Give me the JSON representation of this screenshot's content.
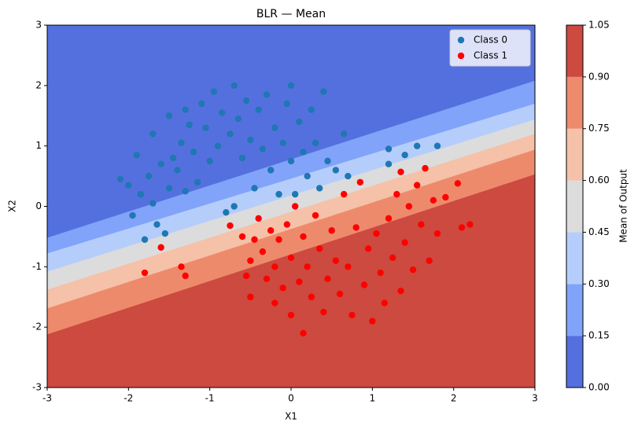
{
  "chart_data": {
    "type": "scatter",
    "title": "BLR — Mean",
    "xlabel": "X1",
    "ylabel": "X2",
    "xlim": [
      -3,
      3
    ],
    "ylim": [
      -3,
      3
    ],
    "xticks": [
      -3,
      -2,
      -1,
      0,
      1,
      2,
      3
    ],
    "yticks": [
      -3,
      -2,
      -1,
      0,
      1,
      2,
      3
    ],
    "legend": "upper right",
    "colorbar": {
      "label": "Mean of Output",
      "ticks": [
        {
          "value": 0,
          "label": "0.00"
        },
        {
          "value": 0.15,
          "label": "0.15"
        },
        {
          "value": 0.3,
          "label": "0.30"
        },
        {
          "value": 0.45,
          "label": "0.45"
        },
        {
          "value": 0.6,
          "label": "0.60"
        },
        {
          "value": 0.75,
          "label": "0.75"
        },
        {
          "value": 0.9,
          "label": "0.90"
        },
        {
          "value": 1.05,
          "label": "1.05"
        }
      ],
      "colors": [
        "#5470de",
        "#81a3f9",
        "#b5cdfa",
        "#dcdcdc",
        "#f5c1a8",
        "#ee8a6c",
        "#cc4a3f"
      ]
    },
    "contour_lines": [
      [
        -0.52,
        2.08
      ],
      [
        -0.78,
        1.7
      ],
      [
        -1.08,
        1.44
      ],
      [
        -1.38,
        1.2
      ],
      [
        -1.69,
        0.94
      ],
      [
        -2.12,
        0.53
      ]
    ],
    "series": [
      {
        "name": "Class 0",
        "color": "#1f77b4",
        "x": [
          -2.1,
          -2.0,
          -1.95,
          -1.9,
          -1.85,
          -1.8,
          -1.75,
          -1.7,
          -1.7,
          -1.65,
          -1.6,
          -1.55,
          -1.5,
          -1.5,
          -1.45,
          -1.4,
          -1.35,
          -1.3,
          -1.3,
          -1.25,
          -1.2,
          -1.15,
          -1.1,
          -1.05,
          -1.0,
          -0.95,
          -0.9,
          -0.85,
          -0.8,
          -0.75,
          -0.7,
          -0.7,
          -0.65,
          -0.6,
          -0.55,
          -0.5,
          -0.45,
          -0.4,
          -0.35,
          -0.3,
          -0.25,
          -0.2,
          -0.15,
          -0.1,
          -0.05,
          0.0,
          0.0,
          0.05,
          0.1,
          0.15,
          0.2,
          0.25,
          0.3,
          0.35,
          0.4,
          0.45,
          0.55,
          0.65,
          0.7,
          1.2,
          1.2,
          1.4,
          1.55,
          1.8
        ],
        "values": [
          0.45,
          0.35,
          -0.15,
          0.85,
          0.2,
          -0.55,
          0.5,
          1.2,
          0.05,
          -0.3,
          0.7,
          -0.45,
          1.5,
          0.3,
          0.8,
          0.6,
          1.05,
          1.6,
          0.25,
          1.35,
          0.9,
          0.4,
          1.7,
          1.3,
          0.75,
          1.9,
          1.0,
          1.55,
          -0.1,
          1.2,
          2.0,
          0.0,
          1.45,
          0.8,
          1.75,
          1.1,
          0.3,
          1.6,
          0.95,
          1.85,
          0.6,
          1.3,
          0.2,
          1.05,
          1.7,
          0.75,
          2.0,
          0.2,
          1.4,
          0.9,
          0.5,
          1.6,
          1.05,
          0.3,
          1.9,
          0.75,
          0.6,
          1.2,
          0.5,
          0.95,
          0.7,
          0.85,
          1.0,
          1.0
        ]
      },
      {
        "name": "Class 1",
        "color": "#ff0000",
        "x": [
          -1.8,
          -1.6,
          -1.35,
          -1.3,
          -0.75,
          -0.6,
          -0.55,
          -0.5,
          -0.45,
          -0.5,
          -0.4,
          -0.35,
          -0.3,
          -0.25,
          -0.2,
          -0.2,
          -0.15,
          -0.1,
          -0.05,
          0.0,
          0.0,
          0.05,
          0.1,
          0.15,
          0.15,
          0.2,
          0.25,
          0.3,
          0.35,
          0.4,
          0.45,
          0.5,
          0.55,
          0.6,
          0.65,
          0.7,
          0.75,
          0.8,
          0.85,
          0.9,
          0.95,
          1.0,
          1.05,
          1.1,
          1.15,
          1.2,
          1.25,
          1.3,
          1.35,
          1.35,
          1.4,
          1.45,
          1.5,
          1.55,
          1.6,
          1.65,
          1.7,
          1.75,
          1.8,
          1.9,
          2.05,
          2.1,
          2.2
        ],
        "values": [
          -1.1,
          -0.68,
          -1.0,
          -1.15,
          -0.32,
          -0.5,
          -1.15,
          -0.9,
          -0.55,
          -1.5,
          -0.2,
          -0.75,
          -1.2,
          -0.4,
          -1.6,
          -1.0,
          -0.55,
          -1.35,
          -0.3,
          -1.8,
          -0.85,
          0.0,
          -1.25,
          -0.5,
          -2.1,
          -1.0,
          -1.5,
          -0.15,
          -0.7,
          -1.75,
          -1.2,
          -0.4,
          -0.9,
          -1.45,
          0.2,
          -1.0,
          -1.8,
          -0.35,
          0.4,
          -1.3,
          -0.7,
          -1.9,
          -0.45,
          -1.1,
          -1.6,
          -0.2,
          -0.85,
          0.2,
          -1.4,
          0.57,
          -0.6,
          0.0,
          -1.05,
          0.35,
          -0.3,
          0.63,
          -0.9,
          0.1,
          -0.45,
          0.15,
          0.38,
          -0.35,
          -0.3
        ]
      }
    ]
  }
}
